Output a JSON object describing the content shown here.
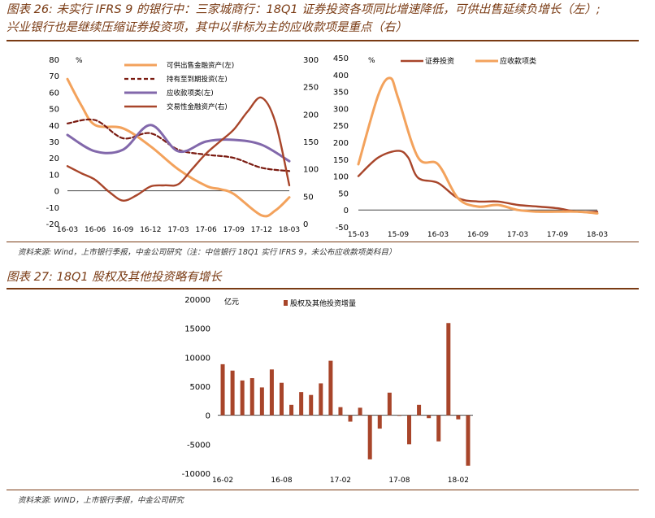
{
  "figure26": {
    "title_line1": "图表 26: 未实行 IFRS 9 的银行中：三家城商行：18Q1 证券投资各项同比增速降低，可供出售延续负增长（左）;",
    "title_line2": "兴业银行也是继续压缩证券投资项，其中以非标为主的应收款项是重点（右）",
    "source": "资料来源: Wind，上市银行季报，中金公司研究（注：中信银行 18Q1 实行 IFRS 9，未公布应收款项类科目）"
  },
  "figure27": {
    "title": "图表 27: 18Q1 股权及其他投资略有增长",
    "source": "资料来源: WIND，上市银行季报，中金公司研究"
  },
  "colors": {
    "title": "#7a3b14",
    "orange": "#f3a25c",
    "darkred": "#7a1a10",
    "purple": "#8268ab",
    "brown": "#a8452a",
    "bar": "#a8452a"
  },
  "chart_data": [
    {
      "id": "left",
      "type": "line",
      "unit_label": "%",
      "x_ticks": [
        "16-03",
        "16-06",
        "16-09",
        "16-12",
        "17-03",
        "17-06",
        "17-09",
        "17-12",
        "18-03"
      ],
      "x_range": [
        0,
        8
      ],
      "y_left": {
        "min": -20,
        "max": 80,
        "ticks": [
          -20,
          -10,
          0,
          10,
          20,
          30,
          40,
          50,
          60,
          70,
          80
        ]
      },
      "y_right": {
        "min": 0,
        "max": 300,
        "ticks": [
          0,
          50,
          100,
          150,
          200,
          250,
          300
        ]
      },
      "series": [
        {
          "name": "可供出售金融资产(左)",
          "axis": "left",
          "color": "#f3a25c",
          "dash": false,
          "width": 3,
          "x": [
            0,
            0.5,
            1,
            2,
            3,
            4,
            5,
            5.5,
            6,
            7,
            7.5,
            8
          ],
          "y": [
            68,
            52,
            40,
            38,
            27,
            13,
            3,
            1,
            -2,
            -15,
            -12,
            -4
          ]
        },
        {
          "name": "持有至到期投资(左)",
          "axis": "left",
          "color": "#7a1a10",
          "dash": true,
          "width": 2.2,
          "x": [
            0,
            1,
            2,
            3,
            4,
            5,
            6,
            7,
            8
          ],
          "y": [
            41,
            43,
            32,
            35,
            25,
            22,
            20,
            14,
            12
          ]
        },
        {
          "name": "应收款项类(左)",
          "axis": "left",
          "color": "#8268ab",
          "dash": false,
          "width": 3,
          "x": [
            0,
            1,
            2,
            3,
            4,
            5,
            6,
            7,
            8
          ],
          "y": [
            34,
            24,
            25,
            40,
            24,
            30,
            31,
            28,
            18
          ]
        },
        {
          "name": "交易性金融资产(右)",
          "axis": "right",
          "color": "#a8452a",
          "dash": false,
          "width": 2.4,
          "x": [
            0,
            0.5,
            1,
            1.5,
            2,
            2.5,
            3,
            3.5,
            4,
            4.5,
            5,
            5.5,
            6,
            6.5,
            7,
            7.5,
            8
          ],
          "y": [
            105,
            92,
            80,
            58,
            42,
            52,
            68,
            70,
            72,
            100,
            128,
            150,
            172,
            205,
            230,
            185,
            70
          ]
        }
      ]
    },
    {
      "id": "right",
      "type": "line",
      "unit_label": "%",
      "x_ticks": [
        "15-03",
        "15-09",
        "16-03",
        "16-09",
        "17-03",
        "17-09",
        "18-03"
      ],
      "x_range": [
        0,
        12
      ],
      "y_left": {
        "min": -50,
        "max": 450,
        "ticks": [
          -50,
          0,
          50,
          100,
          150,
          200,
          250,
          300,
          350,
          400,
          450
        ]
      },
      "series": [
        {
          "name": "证券投资",
          "color": "#a8452a",
          "width": 2.4,
          "x": [
            0,
            1,
            2,
            2.5,
            3,
            4,
            5,
            6,
            7,
            8,
            9,
            10,
            11,
            12
          ],
          "y": [
            100,
            155,
            175,
            155,
            95,
            80,
            35,
            25,
            25,
            15,
            10,
            5,
            -5,
            -5
          ]
        },
        {
          "name": "应收款项类",
          "color": "#f3a25c",
          "width": 3,
          "x": [
            0,
            1,
            1.6,
            2,
            3,
            4,
            5,
            6,
            7,
            8,
            9,
            10,
            11,
            12
          ],
          "y": [
            135,
            340,
            390,
            330,
            155,
            135,
            35,
            10,
            15,
            0,
            -5,
            -5,
            -5,
            -10
          ]
        }
      ]
    },
    {
      "id": "bottom",
      "type": "bar",
      "unit_label": "亿元",
      "legend": "股权及其他投资增量",
      "x_ticks": [
        "16-02",
        "16-08",
        "17-02",
        "17-08",
        "18-02"
      ],
      "x_tick_index": [
        0,
        6,
        12,
        18,
        24
      ],
      "ylim": [
        -10000,
        20000
      ],
      "y_ticks": [
        -10000,
        -5000,
        0,
        5000,
        10000,
        15000,
        20000
      ],
      "values": [
        8800,
        7700,
        6000,
        6400,
        4800,
        7900,
        5600,
        1800,
        4000,
        3500,
        5500,
        9400,
        1400,
        -1100,
        1300,
        -7600,
        -2300,
        3900,
        -100,
        -5000,
        1800,
        -500,
        -4500,
        15900,
        -700,
        -8700
      ]
    }
  ]
}
